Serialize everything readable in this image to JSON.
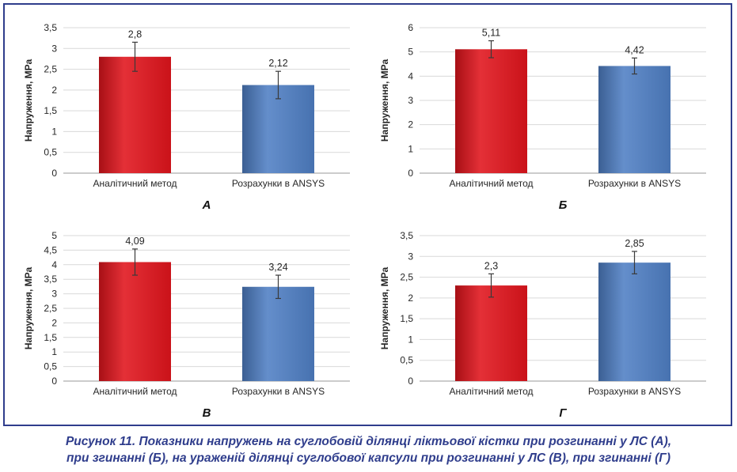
{
  "caption": {
    "line1": "Рисунок 11. Показники напружень на суглобовій ділянці ліктьової кістки при розгинанні у ЛС (А),",
    "line2": "при згинанні (Б), на ураженій ділянці суглобової капсули при розгинанні у ЛС (В), при згинанні (Г)"
  },
  "colors": {
    "series_1": "#e0141c",
    "series_2": "#4f7fc4",
    "frame": "#2f3d8c"
  },
  "chart_data": [
    {
      "panel": "А",
      "type": "bar",
      "categories": [
        "Аналітичний метод",
        "Розрахунки в ANSYS"
      ],
      "values": [
        2.8,
        2.12
      ],
      "value_labels": [
        "2,8",
        "2,12"
      ],
      "errors": [
        0.35,
        0.33
      ],
      "ylabel": "Напруження, МРа",
      "ylim": [
        0,
        3.5
      ],
      "yticks": [
        "0",
        "0,5",
        "1",
        "1,5",
        "2",
        "2,5",
        "3",
        "3,5"
      ],
      "grid": true
    },
    {
      "panel": "Б",
      "type": "bar",
      "categories": [
        "Аналітичний метод",
        "Розрахунки в ANSYS"
      ],
      "values": [
        5.11,
        4.42
      ],
      "value_labels": [
        "5,11",
        "4,42"
      ],
      "errors": [
        0.35,
        0.33
      ],
      "ylabel": "Напруження, МРа",
      "ylim": [
        0,
        6
      ],
      "yticks": [
        "0",
        "1",
        "2",
        "3",
        "4",
        "5",
        "6"
      ],
      "grid": true
    },
    {
      "panel": "В",
      "type": "bar",
      "categories": [
        "Аналітичний метод",
        "Розрахунки в ANSYS"
      ],
      "values": [
        4.09,
        3.24
      ],
      "value_labels": [
        "4,09",
        "3,24"
      ],
      "errors": [
        0.45,
        0.4
      ],
      "ylabel": "Напруження, МРа",
      "ylim": [
        0,
        5
      ],
      "yticks": [
        "0",
        "0,5",
        "1",
        "1,5",
        "2",
        "2,5",
        "3",
        "3,5",
        "4",
        "4,5",
        "5"
      ],
      "grid": true
    },
    {
      "panel": "Г",
      "type": "bar",
      "categories": [
        "Аналітичний метод",
        "Розрахунки в ANSYS"
      ],
      "values": [
        2.3,
        2.85
      ],
      "value_labels": [
        "2,3",
        "2,85"
      ],
      "errors": [
        0.28,
        0.27
      ],
      "ylabel": "Напруження, МРа",
      "ylim": [
        0,
        3.5
      ],
      "yticks": [
        "0",
        "0,5",
        "1",
        "1,5",
        "2",
        "2,5",
        "3",
        "3,5"
      ],
      "grid": true
    }
  ]
}
